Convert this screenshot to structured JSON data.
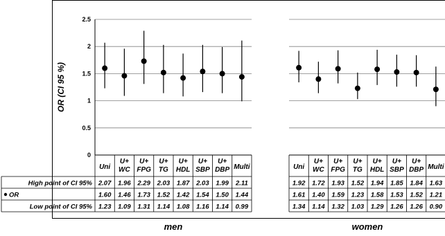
{
  "chart_data": {
    "type": "errorbar",
    "ylabel": "OR (CI 95 %)",
    "ylim": [
      0,
      2.5
    ],
    "yticks": [
      "0",
      "0.5",
      "1",
      "1.5",
      "2",
      "2.5"
    ],
    "grid": true,
    "row_labels": [
      "High point of CI 95%",
      "OR",
      "Low point of CI 95%"
    ],
    "groups": [
      {
        "name": "men",
        "categories": [
          {
            "line1": "Uni",
            "line2": "",
            "high": 2.07,
            "or": 1.6,
            "low": 1.23
          },
          {
            "line1": "U+",
            "line2": "WC",
            "high": 1.96,
            "or": 1.46,
            "low": 1.09
          },
          {
            "line1": "U+",
            "line2": "FPG",
            "high": 2.29,
            "or": 1.73,
            "low": 1.31
          },
          {
            "line1": "U+",
            "line2": "TG",
            "high": 2.03,
            "or": 1.52,
            "low": 1.14
          },
          {
            "line1": "U+",
            "line2": "HDL",
            "high": 1.87,
            "or": 1.42,
            "low": 1.08
          },
          {
            "line1": "U+",
            "line2": "SBP",
            "high": 2.03,
            "or": 1.54,
            "low": 1.16
          },
          {
            "line1": "U+",
            "line2": "DBP",
            "high": 1.99,
            "or": 1.5,
            "low": 1.14
          },
          {
            "line1": "Multi",
            "line2": "",
            "high": 2.11,
            "or": 1.44,
            "low": 0.99
          }
        ]
      },
      {
        "name": "women",
        "categories": [
          {
            "line1": "Uni",
            "line2": "",
            "high": 1.92,
            "or": 1.61,
            "low": 1.34
          },
          {
            "line1": "U+",
            "line2": "WC",
            "high": 1.72,
            "or": 1.4,
            "low": 1.14
          },
          {
            "line1": "U+",
            "line2": "FPG",
            "high": 1.93,
            "or": 1.59,
            "low": 1.32
          },
          {
            "line1": "U+",
            "line2": "TG",
            "high": 1.52,
            "or": 1.23,
            "low": 1.03
          },
          {
            "line1": "U+",
            "line2": "HDL",
            "high": 1.94,
            "or": 1.58,
            "low": 1.29
          },
          {
            "line1": "U+",
            "line2": "SBP",
            "high": 1.85,
            "or": 1.53,
            "low": 1.26
          },
          {
            "line1": "U+",
            "line2": "DBP",
            "high": 1.84,
            "or": 1.52,
            "low": 1.26
          },
          {
            "line1": "Multi",
            "line2": "",
            "high": 1.63,
            "or": 1.21,
            "low": 0.9
          }
        ]
      }
    ],
    "display": {
      "men": {
        "high": [
          "2.07",
          "1.96",
          "2.29",
          "2.03",
          "1.87",
          "2.03",
          "1.99",
          "2.11"
        ],
        "or": [
          "1.60",
          "1.46",
          "1.73",
          "1.52",
          "1.42",
          "1.54",
          "1.50",
          "1.44"
        ],
        "low": [
          "1.23",
          "1.09",
          "1.31",
          "1.14",
          "1.08",
          "1.16",
          "1.14",
          "0.99"
        ]
      },
      "women": {
        "high": [
          "1.92",
          "1.72",
          "1.93",
          "1.52",
          "1.94",
          "1.85",
          "1.84",
          "1.63"
        ],
        "or": [
          "1.61",
          "1.40",
          "1.59",
          "1.23",
          "1.58",
          "1.53",
          "1.52",
          "1.21"
        ],
        "low": [
          "1.34",
          "1.14",
          "1.32",
          "1.03",
          "1.29",
          "1.26",
          "1.26",
          "0.90"
        ]
      }
    },
    "colors": {
      "marker": "#000000",
      "grid": "#808080"
    }
  }
}
